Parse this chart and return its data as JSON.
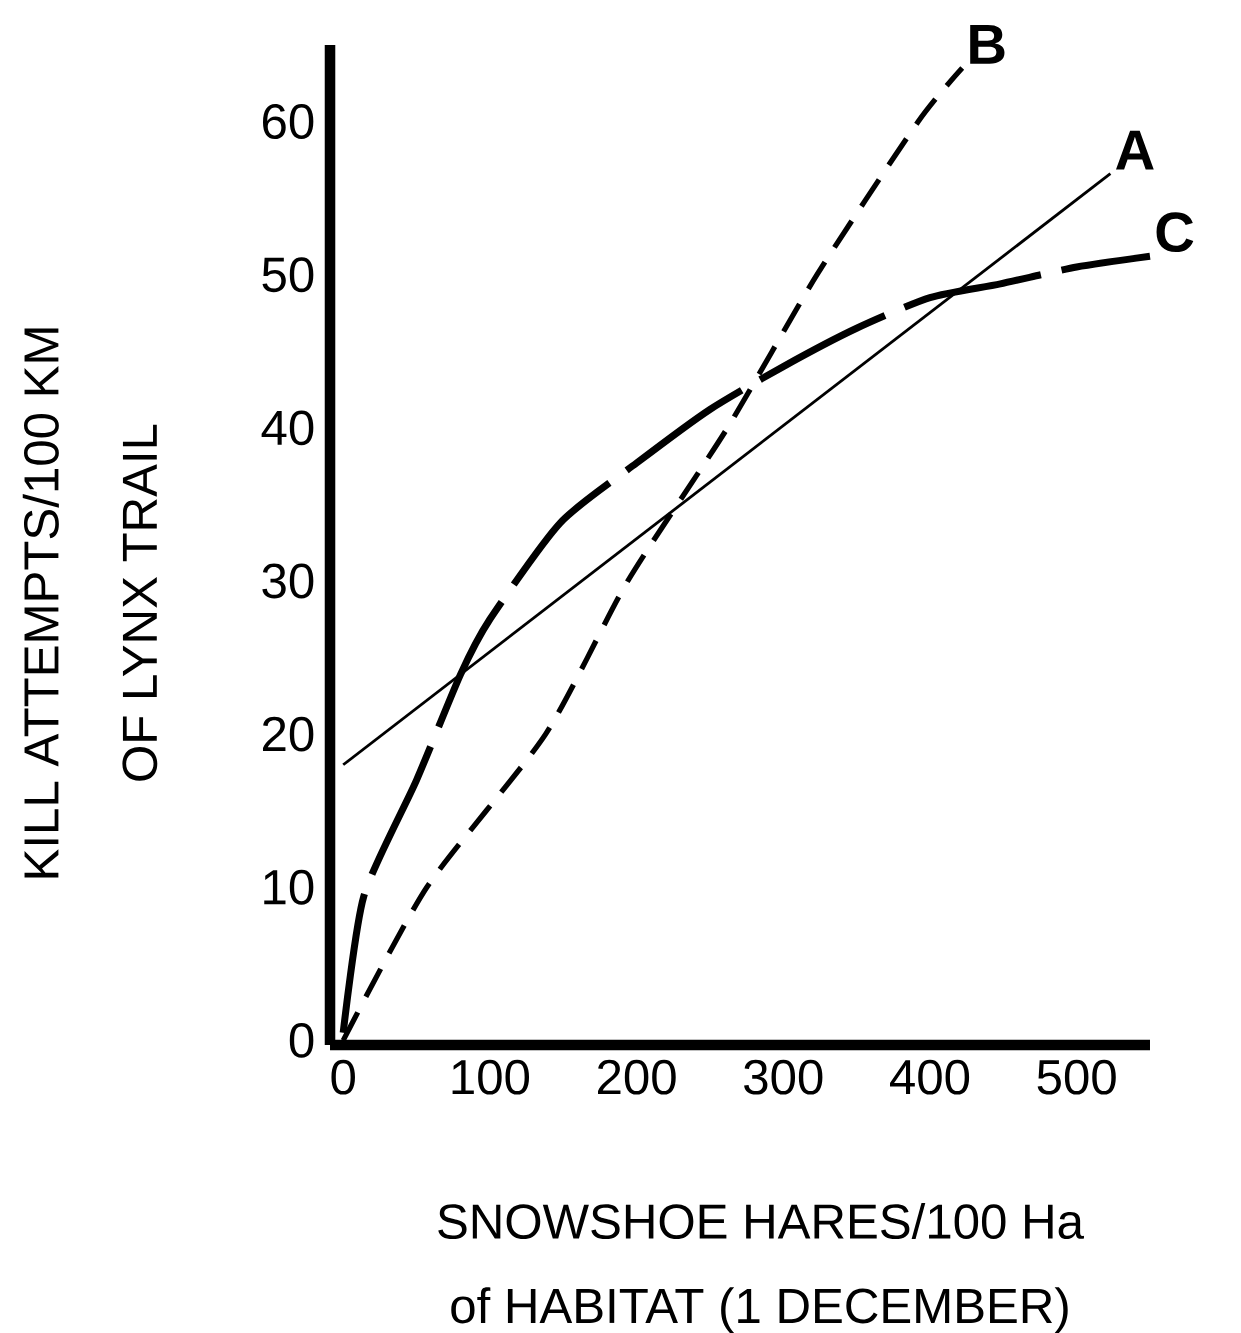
{
  "chart_data": {
    "type": "line",
    "xlabel": "SNOWSHOE HARES/100 Ha\nof HABITAT (1 DECEMBER)",
    "ylabel": "KILL ATTEMPTS/100 KM\nOF LYNX TRAIL",
    "xlim": [
      -9,
      550
    ],
    "ylim": [
      -0.3,
      65
    ],
    "xticks": [
      0,
      100,
      200,
      300,
      400,
      500
    ],
    "yticks": [
      0,
      10,
      20,
      30,
      40,
      50,
      60
    ],
    "grid": false,
    "marker": "none",
    "series": [
      {
        "name": "B",
        "color": "#000000",
        "line_style": "dashed",
        "x": [
          0,
          57,
          138,
          194,
          262,
          323,
          392,
          422
        ],
        "values": [
          0,
          10,
          20,
          30,
          40,
          50,
          60,
          63.5
        ]
      },
      {
        "name": "A",
        "color": "#000000",
        "line_style": "solid",
        "x": [
          0,
          523
        ],
        "values": [
          18,
          56.6
        ]
      },
      {
        "name": "C",
        "color": "#000000",
        "line_style": "dashed",
        "x": [
          0,
          14,
          50,
          80,
          100,
          148,
          200,
          250,
          300,
          350,
          400,
          448,
          500,
          550
        ],
        "values": [
          0.5,
          9.4,
          17,
          23.9,
          27.5,
          33.8,
          37.7,
          41.2,
          44,
          46.5,
          48.5,
          49.4,
          50.5,
          51.2
        ]
      }
    ]
  }
}
